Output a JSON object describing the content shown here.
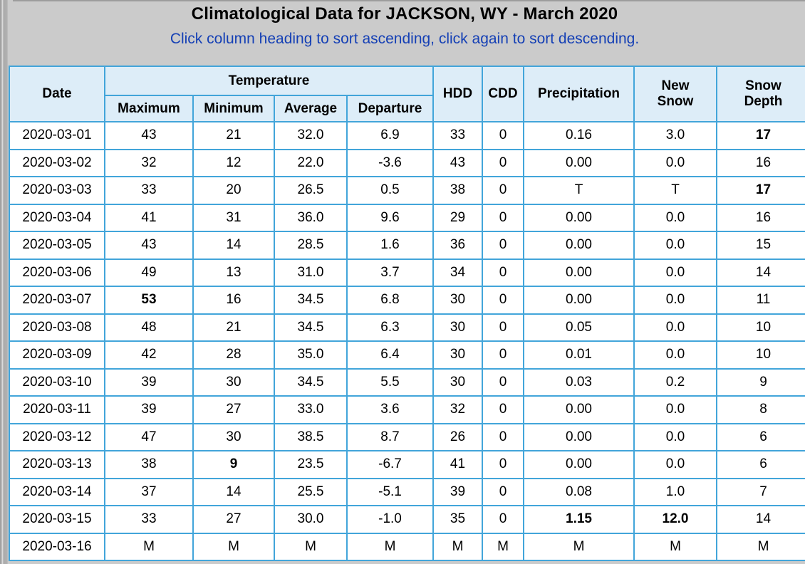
{
  "page": {
    "title": "Climatological Data for JACKSON, WY - March 2020",
    "subtitle": "Click column heading to sort ascending, click again to sort descending."
  },
  "colors": {
    "border": "#42a5da",
    "header_bg": "#ddedf8",
    "subtitle_text": "#1540b5",
    "record_high": "#ff0000",
    "record_low": "#0000ff",
    "notable": "#0f8b0f",
    "page_bg": "#cbcbcb"
  },
  "table": {
    "headers": {
      "date": "Date",
      "temperature": "Temperature",
      "maximum": "Maximum",
      "minimum": "Minimum",
      "average": "Average",
      "departure": "Departure",
      "hdd": "HDD",
      "cdd": "CDD",
      "precipitation": "Precipitation",
      "new_snow": "New\nSnow",
      "snow_depth": "Snow\nDepth"
    },
    "column_keys": [
      "date",
      "maximum",
      "minimum",
      "average",
      "departure",
      "hdd",
      "cdd",
      "precipitation",
      "new_snow",
      "snow_depth"
    ],
    "rows": [
      [
        "2020-03-01",
        "43",
        "21",
        "32.0",
        "6.9",
        "33",
        "0",
        "0.16",
        "3.0",
        {
          "text": "17",
          "color": "green"
        }
      ],
      [
        "2020-03-02",
        "32",
        "12",
        "22.0",
        "-3.6",
        "43",
        "0",
        "0.00",
        "0.0",
        "16"
      ],
      [
        "2020-03-03",
        "33",
        "20",
        "26.5",
        "0.5",
        "38",
        "0",
        "T",
        "T",
        {
          "text": "17",
          "color": "green"
        }
      ],
      [
        "2020-03-04",
        "41",
        "31",
        "36.0",
        "9.6",
        "29",
        "0",
        "0.00",
        "0.0",
        "16"
      ],
      [
        "2020-03-05",
        "43",
        "14",
        "28.5",
        "1.6",
        "36",
        "0",
        "0.00",
        "0.0",
        "15"
      ],
      [
        "2020-03-06",
        "49",
        "13",
        "31.0",
        "3.7",
        "34",
        "0",
        "0.00",
        "0.0",
        "14"
      ],
      [
        "2020-03-07",
        {
          "text": "53",
          "color": "red"
        },
        "16",
        "34.5",
        "6.8",
        "30",
        "0",
        "0.00",
        "0.0",
        "11"
      ],
      [
        "2020-03-08",
        "48",
        "21",
        "34.5",
        "6.3",
        "30",
        "0",
        "0.05",
        "0.0",
        "10"
      ],
      [
        "2020-03-09",
        "42",
        "28",
        "35.0",
        "6.4",
        "30",
        "0",
        "0.01",
        "0.0",
        "10"
      ],
      [
        "2020-03-10",
        "39",
        "30",
        "34.5",
        "5.5",
        "30",
        "0",
        "0.03",
        "0.2",
        "9"
      ],
      [
        "2020-03-11",
        "39",
        "27",
        "33.0",
        "3.6",
        "32",
        "0",
        "0.00",
        "0.0",
        "8"
      ],
      [
        "2020-03-12",
        "47",
        "30",
        "38.5",
        "8.7",
        "26",
        "0",
        "0.00",
        "0.0",
        "6"
      ],
      [
        "2020-03-13",
        "38",
        {
          "text": "9",
          "color": "blue"
        },
        "23.5",
        "-6.7",
        "41",
        "0",
        "0.00",
        "0.0",
        "6"
      ],
      [
        "2020-03-14",
        "37",
        "14",
        "25.5",
        "-5.1",
        "39",
        "0",
        "0.08",
        "1.0",
        "7"
      ],
      [
        "2020-03-15",
        "33",
        "27",
        "30.0",
        "-1.0",
        "35",
        "0",
        {
          "text": "1.15",
          "color": "green"
        },
        {
          "text": "12.0",
          "color": "green"
        },
        "14"
      ],
      [
        "2020-03-16",
        "M",
        "M",
        "M",
        "M",
        "M",
        "M",
        "M",
        "M",
        "M"
      ]
    ]
  }
}
